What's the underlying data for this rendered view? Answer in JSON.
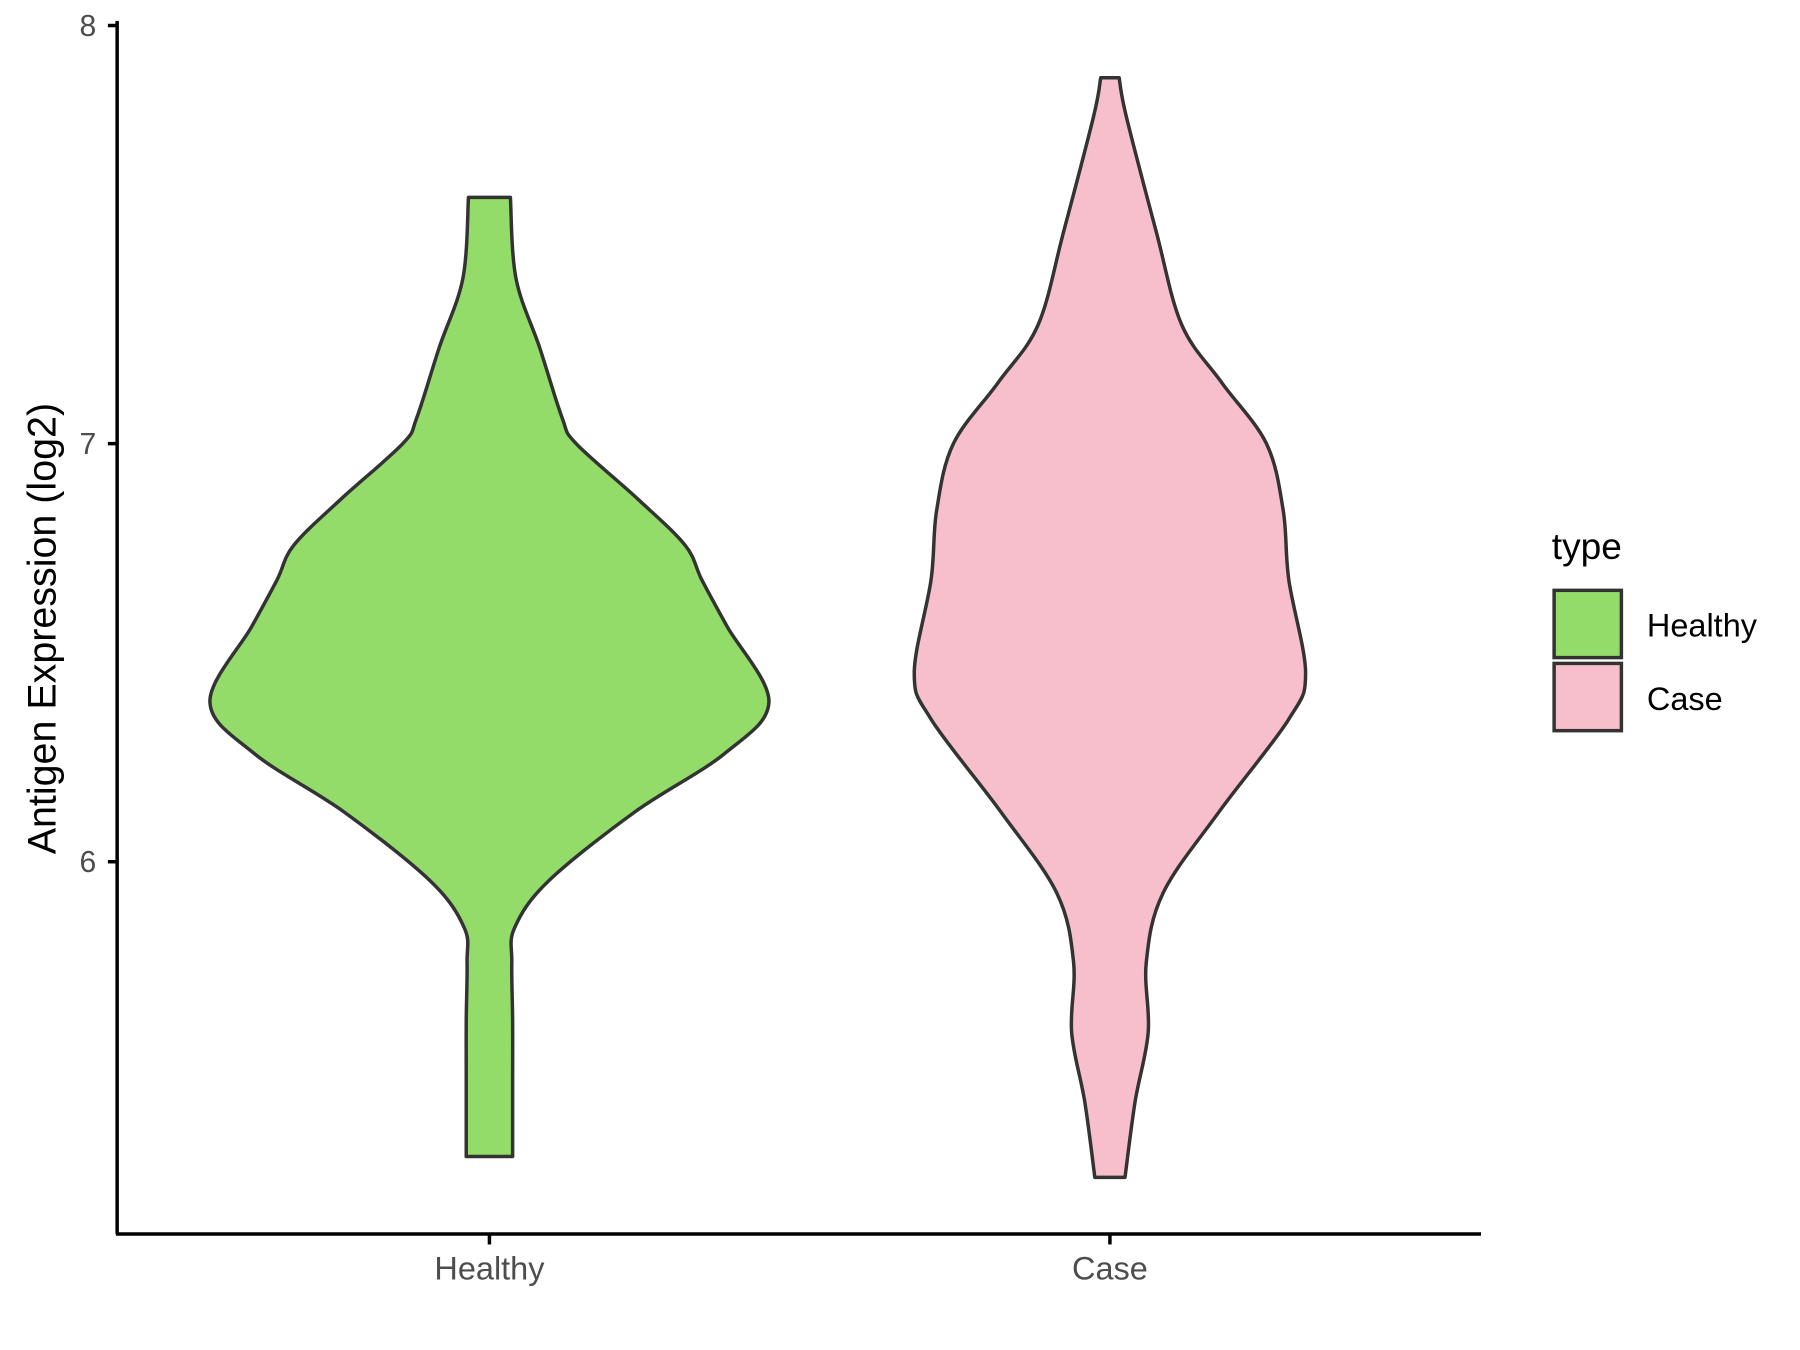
{
  "chart_data": {
    "type": "violin",
    "title": "",
    "xlabel": "",
    "ylabel": "Antigen Expression (log2)",
    "ylim": [
      5.12,
      8.0
    ],
    "yticks": [
      6,
      7,
      8
    ],
    "ytick_labels": [
      "6",
      "7",
      "8"
    ],
    "categories": [
      "Healthy",
      "Case"
    ],
    "legend": {
      "title": "type",
      "placement": "right",
      "entries": [
        "Healthy",
        "Case"
      ]
    },
    "grid": false,
    "series": [
      {
        "name": "Healthy",
        "color": "#93DC6A",
        "density_profile": [
          [
            7.589,
            0.075
          ],
          [
            7.395,
            0.095
          ],
          [
            7.229,
            0.18
          ],
          [
            7.062,
            0.26
          ],
          [
            7.0,
            0.31
          ],
          [
            6.868,
            0.53
          ],
          [
            6.757,
            0.7
          ],
          [
            6.674,
            0.76
          ],
          [
            6.563,
            0.85
          ],
          [
            6.383,
            1.0
          ],
          [
            6.258,
            0.84
          ],
          [
            6.119,
            0.52
          ],
          [
            5.953,
            0.21
          ],
          [
            5.842,
            0.09
          ],
          [
            5.759,
            0.08
          ],
          [
            5.62,
            0.083
          ],
          [
            5.481,
            0.083
          ],
          [
            5.295,
            0.083
          ]
        ]
      },
      {
        "name": "Case",
        "color": "#F7BFCB",
        "density_profile": [
          [
            7.875,
            0.033
          ],
          [
            7.784,
            0.058
          ],
          [
            7.506,
            0.166
          ],
          [
            7.284,
            0.257
          ],
          [
            7.146,
            0.4
          ],
          [
            7.0,
            0.56
          ],
          [
            6.84,
            0.62
          ],
          [
            6.674,
            0.64
          ],
          [
            6.452,
            0.7
          ],
          [
            6.341,
            0.64
          ],
          [
            6.119,
            0.39
          ],
          [
            5.925,
            0.19
          ],
          [
            5.759,
            0.13
          ],
          [
            5.592,
            0.137
          ],
          [
            5.426,
            0.09
          ],
          [
            5.245,
            0.054
          ]
        ]
      }
    ]
  }
}
